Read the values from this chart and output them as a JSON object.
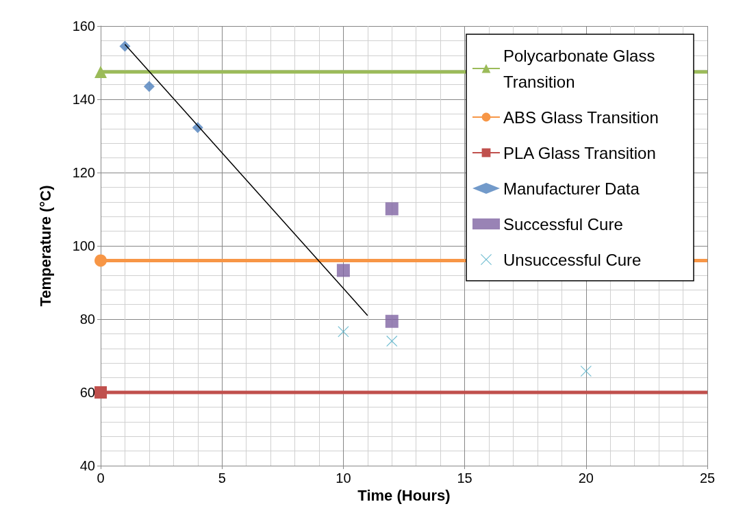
{
  "chart_data": {
    "type": "scatter",
    "xlabel": "Time (Hours)",
    "ylabel": "Temperature (°C)",
    "xlim": [
      0,
      25
    ],
    "xticks": [
      0,
      5,
      10,
      15,
      20,
      25
    ],
    "ylim": [
      40,
      160
    ],
    "yticks": [
      40,
      60,
      80,
      100,
      120,
      140,
      160
    ],
    "grid": true,
    "legend": "top right",
    "series": [
      {
        "name": "Polycarbonate Glass Transition",
        "type": "line",
        "marker": "triangle",
        "color": "#9bbb59",
        "x": [
          0,
          25
        ],
        "values": [
          147.5,
          147.5
        ]
      },
      {
        "name": "ABS Glass Transition",
        "type": "line",
        "marker": "circle",
        "color": "#f79646",
        "x": [
          0,
          25
        ],
        "values": [
          96,
          96
        ]
      },
      {
        "name": "PLA Glass Transition",
        "type": "line",
        "marker": "square",
        "color": "#c0504d",
        "x": [
          0,
          25
        ],
        "values": [
          60,
          60
        ]
      },
      {
        "name": "Manufacturer Data",
        "marker": "diamond",
        "color": "#4f81bd",
        "x": [
          1,
          2,
          4
        ],
        "values": [
          154.5,
          143.5,
          132.3
        ]
      },
      {
        "name": "Successful Cure",
        "marker": "square",
        "color": "#8064a2",
        "x": [
          10,
          12,
          12
        ],
        "values": [
          93.3,
          110.1,
          79.4
        ]
      },
      {
        "name": "Unsuccessful Cure",
        "marker": "cross",
        "color": "#4bacc6",
        "x": [
          10,
          12,
          20
        ],
        "values": [
          76.6,
          74,
          65.8
        ]
      },
      {
        "type": "line",
        "marker": "none",
        "color": "#000000",
        "x": [
          1,
          11
        ],
        "values": [
          155,
          81
        ]
      }
    ]
  }
}
